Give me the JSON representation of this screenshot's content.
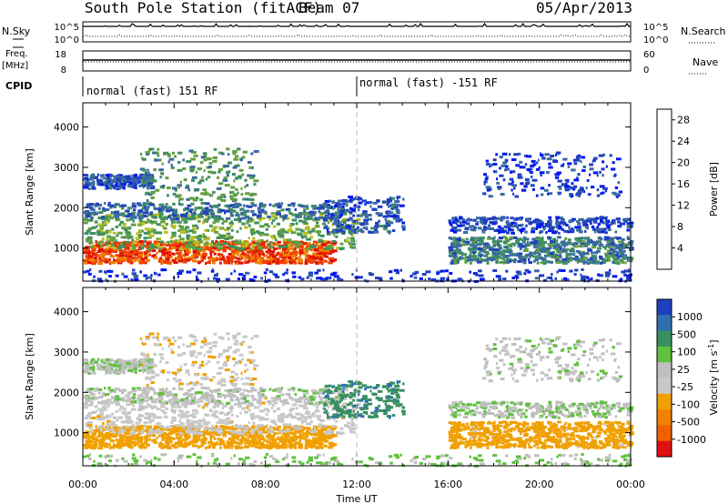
{
  "header": {
    "station": "South Pole Station (fitACF)",
    "beam": "Beam 07",
    "date": "05/Apr/2013"
  },
  "strip_labels": {
    "nsky": "N.Sky",
    "nsearch": "N.Search",
    "freq_line1": "Freq.",
    "freq_line2": "[MHz]",
    "nave": "Nave",
    "cpid": "CPID"
  },
  "strip_ticks": {
    "noise_left": [
      "10^5",
      "10^0"
    ],
    "noise_right": [
      "10^5",
      "10^0"
    ],
    "freq_left": [
      "18",
      "8"
    ],
    "nave_right": [
      "60",
      "0"
    ]
  },
  "cpid_segments": [
    {
      "text": "normal (fast) 151 RF",
      "start_hour": 0
    },
    {
      "text": "normal (fast) -151 RF",
      "start_hour": 12
    }
  ],
  "colors": {
    "power": [
      "#0018f0",
      "#2040c0",
      "#3a6aa0",
      "#3f8f60",
      "#62a040",
      "#b8c020",
      "#f0c000",
      "#f08000",
      "#f04000",
      "#e01000"
    ],
    "velocity": [
      "#2040c0",
      "#3070b0",
      "#3a8f60",
      "#60c040",
      "#c0c0c0",
      "#c8c8c8",
      "#f0a000",
      "#f08000",
      "#f06000",
      "#e01010"
    ]
  },
  "chart_data": [
    {
      "type": "heatmap",
      "panel": "power",
      "ylabel": "Slant Range [km]",
      "ylim": [
        180,
        4600
      ],
      "yticks": [
        "1000",
        "2000",
        "3000",
        "4000"
      ],
      "xlim": [
        0,
        24
      ],
      "colorbar": {
        "label": "Power [dB]",
        "ticks": [
          "28",
          "24",
          "20",
          "16",
          "12",
          "8",
          "4"
        ],
        "range": [
          0,
          30
        ]
      }
    },
    {
      "type": "heatmap",
      "panel": "velocity",
      "ylabel": "Slant Range [km]",
      "ylim": [
        180,
        4600
      ],
      "yticks": [
        "1000",
        "2000",
        "3000",
        "4000"
      ],
      "xlim": [
        0,
        24
      ],
      "xticks": [
        "00:00",
        "04:00",
        "08:00",
        "12:00",
        "16:00",
        "20:00",
        "00:00"
      ],
      "xlabel": "Time UT",
      "colorbar": {
        "label": "Velocity [m s^-1]",
        "ticks": [
          "1000",
          "500",
          "100",
          "25",
          "-25",
          "-100",
          "-500",
          "-1000"
        ]
      }
    }
  ],
  "scatter_layers": [
    {
      "t0": 0.0,
      "t1": 11.0,
      "r0": 650,
      "r1": 1200,
      "n": 900,
      "power": 26,
      "vel": -250
    },
    {
      "t0": 0.0,
      "t1": 12.0,
      "r0": 1000,
      "r1": 1900,
      "n": 600,
      "power": 13,
      "vel": -60
    },
    {
      "t0": 0.0,
      "t1": 11.5,
      "r0": 1750,
      "r1": 2150,
      "n": 350,
      "power": 8,
      "vel": 10
    },
    {
      "t0": 0.0,
      "t1": 3.0,
      "r0": 2500,
      "r1": 2850,
      "n": 220,
      "power": 6,
      "vel": 15
    },
    {
      "t0": 2.5,
      "t1": 7.5,
      "r0": 2200,
      "r1": 3500,
      "n": 220,
      "power": 11,
      "vel": -80
    },
    {
      "t0": 10.5,
      "t1": 14.0,
      "r0": 1400,
      "r1": 2300,
      "n": 220,
      "power": 6,
      "vel": 400
    },
    {
      "t0": 16.0,
      "t1": 24.0,
      "r0": 650,
      "r1": 1300,
      "n": 700,
      "power": 9,
      "vel": -180
    },
    {
      "t0": 16.0,
      "t1": 24.0,
      "r0": 1400,
      "r1": 1800,
      "n": 300,
      "power": 5,
      "vel": 20
    },
    {
      "t0": 17.5,
      "t1": 23.5,
      "r0": 2300,
      "r1": 3400,
      "n": 200,
      "power": 4,
      "vel": 10
    },
    {
      "t0": 0.0,
      "t1": 24.0,
      "r0": 200,
      "r1": 500,
      "n": 220,
      "power": 3,
      "vel": 30
    }
  ]
}
